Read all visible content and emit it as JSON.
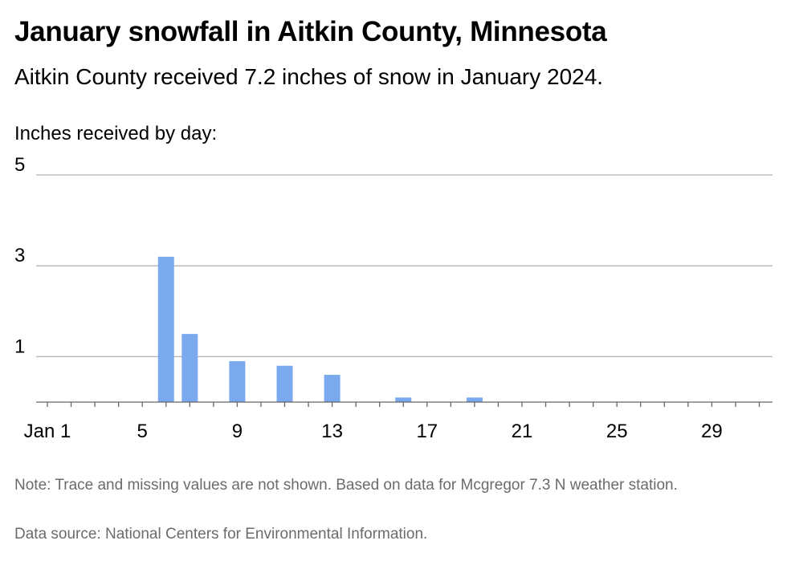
{
  "header": {
    "title": "January snowfall in Aitkin County, Minnesota",
    "subtitle": "Aitkin County received 7.2 inches of snow in January 2024.",
    "axis_caption": "Inches received by day:"
  },
  "footer": {
    "note": "Note: Trace and missing values are not shown. Based on data for Mcgregor 7.3 N weather station.",
    "source": "Data source: National Centers for Environmental Information."
  },
  "colors": {
    "bar": "#7aaaed",
    "grid": "#b3b3b3",
    "axis": "#666666"
  },
  "chart_data": {
    "type": "bar",
    "title": "January snowfall in Aitkin County, Minnesota",
    "subtitle": "Aitkin County received 7.2 inches of snow in January 2024.",
    "ylabel": "Inches received by day:",
    "xlabel": "",
    "x_range": [
      1,
      31
    ],
    "ylim": [
      0,
      5
    ],
    "y_ticks": [
      1,
      3,
      5
    ],
    "grid": true,
    "x_ticks": [
      {
        "day": 1,
        "label": "Jan 1"
      },
      {
        "day": 5,
        "label": "5"
      },
      {
        "day": 9,
        "label": "9"
      },
      {
        "day": 13,
        "label": "13"
      },
      {
        "day": 17,
        "label": "17"
      },
      {
        "day": 21,
        "label": "21"
      },
      {
        "day": 25,
        "label": "25"
      },
      {
        "day": 29,
        "label": "29"
      }
    ],
    "bars": [
      {
        "day": 6,
        "value": 3.2
      },
      {
        "day": 7,
        "value": 1.5
      },
      {
        "day": 9,
        "value": 0.9
      },
      {
        "day": 11,
        "value": 0.8
      },
      {
        "day": 13,
        "value": 0.6
      },
      {
        "day": 16,
        "value": 0.1
      },
      {
        "day": 19,
        "value": 0.1
      }
    ]
  }
}
